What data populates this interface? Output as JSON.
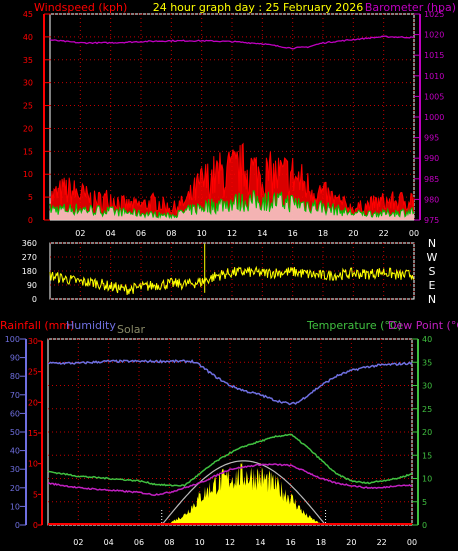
{
  "colors": {
    "background": "#000000",
    "frame": "#ffffff",
    "grid": "#c00000",
    "wind": "#ff0000",
    "wind_gust": "#00c000",
    "wind_mean": "#ffffff",
    "barometer": "#c000c0",
    "direction": "#ffff00",
    "humidity": "#6f6fe0",
    "rain_axis": "#ff0000",
    "temperature": "#40c040",
    "dew_point": "#c020c0",
    "solar": "#ffff00",
    "solar_label": "#888866",
    "solar_curve": "#bbbbbb",
    "title": "#ffff00"
  },
  "header": {
    "title": "24 hour graph day : 25 February 2026",
    "left_label": "Windspeed (kph)",
    "right_label": "Barometer (hpa)"
  },
  "direction_labels": [
    "N",
    "W",
    "S",
    "E",
    "N"
  ],
  "lower_labels": {
    "rainfall": "Rainfall (mm)",
    "humidity": "Humidity",
    "solar": "Solar",
    "temperature": "Temperature (°C)",
    "dew_point": "Dew Point (°C)"
  },
  "chart_data": [
    {
      "type": "line",
      "name": "wind-barometer",
      "x_ticks": [
        "02",
        "04",
        "06",
        "08",
        "10",
        "12",
        "14",
        "16",
        "18",
        "20",
        "22",
        "00"
      ],
      "y_left_ticks": [
        "0",
        "5",
        "10",
        "15",
        "20",
        "25",
        "30",
        "35",
        "40",
        "45"
      ],
      "ylim_left": [
        0,
        45
      ],
      "y_right_ticks": [
        "975",
        "980",
        "985",
        "990",
        "995",
        "1000",
        "1005",
        "1010",
        "1015",
        "1020",
        "1025"
      ],
      "ylim_right": [
        975,
        1025
      ],
      "series": [
        {
          "name": "Barometer",
          "unit": "hpa",
          "x": [
            0,
            2,
            4,
            6,
            8,
            10,
            12,
            14,
            15,
            16,
            17,
            18,
            20,
            22,
            24
          ],
          "values": [
            1018.7,
            1018.0,
            1018.0,
            1018.3,
            1018.5,
            1018.5,
            1018.3,
            1017.8,
            1017.2,
            1016.7,
            1017.0,
            1018.0,
            1018.8,
            1019.5,
            1019.3
          ]
        },
        {
          "name": "Windspeed",
          "unit": "kph",
          "x": [
            0,
            1,
            2,
            3,
            4,
            5,
            6,
            7,
            8,
            9,
            10,
            11,
            12,
            13,
            14,
            15,
            16,
            17,
            18,
            19,
            20,
            21,
            22,
            23,
            24
          ],
          "values": [
            6,
            8,
            7,
            5,
            6,
            4,
            4,
            5,
            3,
            5,
            10,
            12,
            13,
            14,
            12,
            12,
            12,
            9,
            7,
            5,
            3,
            4,
            5,
            5,
            6
          ]
        },
        {
          "name": "Wind gust",
          "unit": "kph",
          "x": [
            0,
            2,
            4,
            6,
            8,
            10,
            12,
            14,
            16,
            18,
            20,
            22,
            24
          ],
          "values": [
            2.5,
            2.5,
            2,
            1.5,
            1,
            3,
            4,
            4.5,
            4,
            3,
            1.5,
            1.5,
            2
          ]
        }
      ]
    },
    {
      "type": "line",
      "name": "wind-direction",
      "x_ticks": [
        "02",
        "04",
        "06",
        "08",
        "10",
        "12",
        "14",
        "16",
        "18",
        "20",
        "22",
        "00"
      ],
      "y_ticks": [
        "0",
        "90",
        "180",
        "270",
        "360"
      ],
      "ylim": [
        0,
        360
      ],
      "series": [
        {
          "name": "Direction",
          "unit": "deg",
          "x": [
            0,
            1,
            2,
            3,
            4,
            5,
            6,
            7,
            8,
            9,
            10,
            11,
            12,
            13,
            14,
            15,
            16,
            17,
            18,
            19,
            20,
            21,
            22,
            23,
            24
          ],
          "values": [
            150,
            130,
            110,
            105,
            80,
            60,
            75,
            90,
            100,
            95,
            110,
            150,
            170,
            175,
            165,
            170,
            175,
            160,
            150,
            155,
            165,
            160,
            175,
            150,
            160
          ]
        }
      ]
    },
    {
      "type": "line",
      "name": "temperature-humidity-solar",
      "x_ticks": [
        "02",
        "04",
        "06",
        "08",
        "10",
        "12",
        "14",
        "16",
        "18",
        "20",
        "22",
        "00"
      ],
      "y_humidity_ticks": [
        "0",
        "10",
        "20",
        "30",
        "40",
        "50",
        "60",
        "70",
        "80",
        "90",
        "100"
      ],
      "ylim_humidity": [
        0,
        100
      ],
      "y_rain_ticks": [
        "0",
        "5",
        "10",
        "15",
        "20",
        "25",
        "30"
      ],
      "ylim_rain": [
        0,
        30
      ],
      "y_temp_ticks": [
        "0",
        "5",
        "10",
        "15",
        "20",
        "25",
        "30",
        "35",
        "40"
      ],
      "ylim_temp": [
        0,
        40
      ],
      "series": [
        {
          "name": "Humidity",
          "unit": "%",
          "x": [
            0,
            2,
            4,
            6,
            8,
            9.5,
            10,
            11,
            12,
            13,
            14,
            15,
            16,
            16.5,
            17,
            18,
            19,
            20,
            21,
            22,
            24
          ],
          "values": [
            87,
            87,
            88,
            88,
            88,
            88,
            86,
            80,
            75,
            72,
            70,
            67,
            65,
            66,
            69,
            75,
            80,
            83,
            85,
            86,
            87
          ]
        },
        {
          "name": "Temperature",
          "unit": "°C",
          "x": [
            0,
            2,
            4,
            6,
            7,
            8,
            9,
            10,
            11,
            12,
            13,
            14,
            15,
            16,
            17,
            18,
            19,
            20,
            21,
            22,
            23,
            24
          ],
          "values": [
            11.5,
            10.5,
            10,
            9.5,
            8.8,
            8.5,
            8.5,
            11,
            13.5,
            15.5,
            17,
            18,
            19,
            19.5,
            17,
            14,
            11,
            9.5,
            9,
            9.5,
            10,
            11
          ]
        },
        {
          "name": "Dew Point",
          "unit": "°C",
          "x": [
            0,
            2,
            4,
            6,
            7,
            8,
            9,
            10,
            11,
            12,
            13,
            14,
            15,
            16,
            17,
            18,
            19,
            20,
            21,
            22,
            23,
            24
          ],
          "values": [
            9,
            8,
            7.5,
            7,
            6.5,
            7,
            8,
            9,
            10.5,
            12,
            12.5,
            13,
            13,
            12.8,
            11.5,
            10,
            9,
            8.5,
            8,
            8,
            8.5,
            8.5
          ]
        },
        {
          "name": "Solar",
          "unit": "",
          "x": [
            7,
            8,
            9,
            10,
            11,
            12,
            13,
            14,
            15,
            16,
            17,
            18
          ],
          "values": [
            0,
            4,
            20,
            55,
            82,
            95,
            100,
            96,
            80,
            55,
            20,
            2
          ]
        },
        {
          "name": "Rainfall",
          "unit": "mm",
          "x": [
            0,
            24
          ],
          "values": [
            0,
            0
          ]
        }
      ]
    }
  ]
}
